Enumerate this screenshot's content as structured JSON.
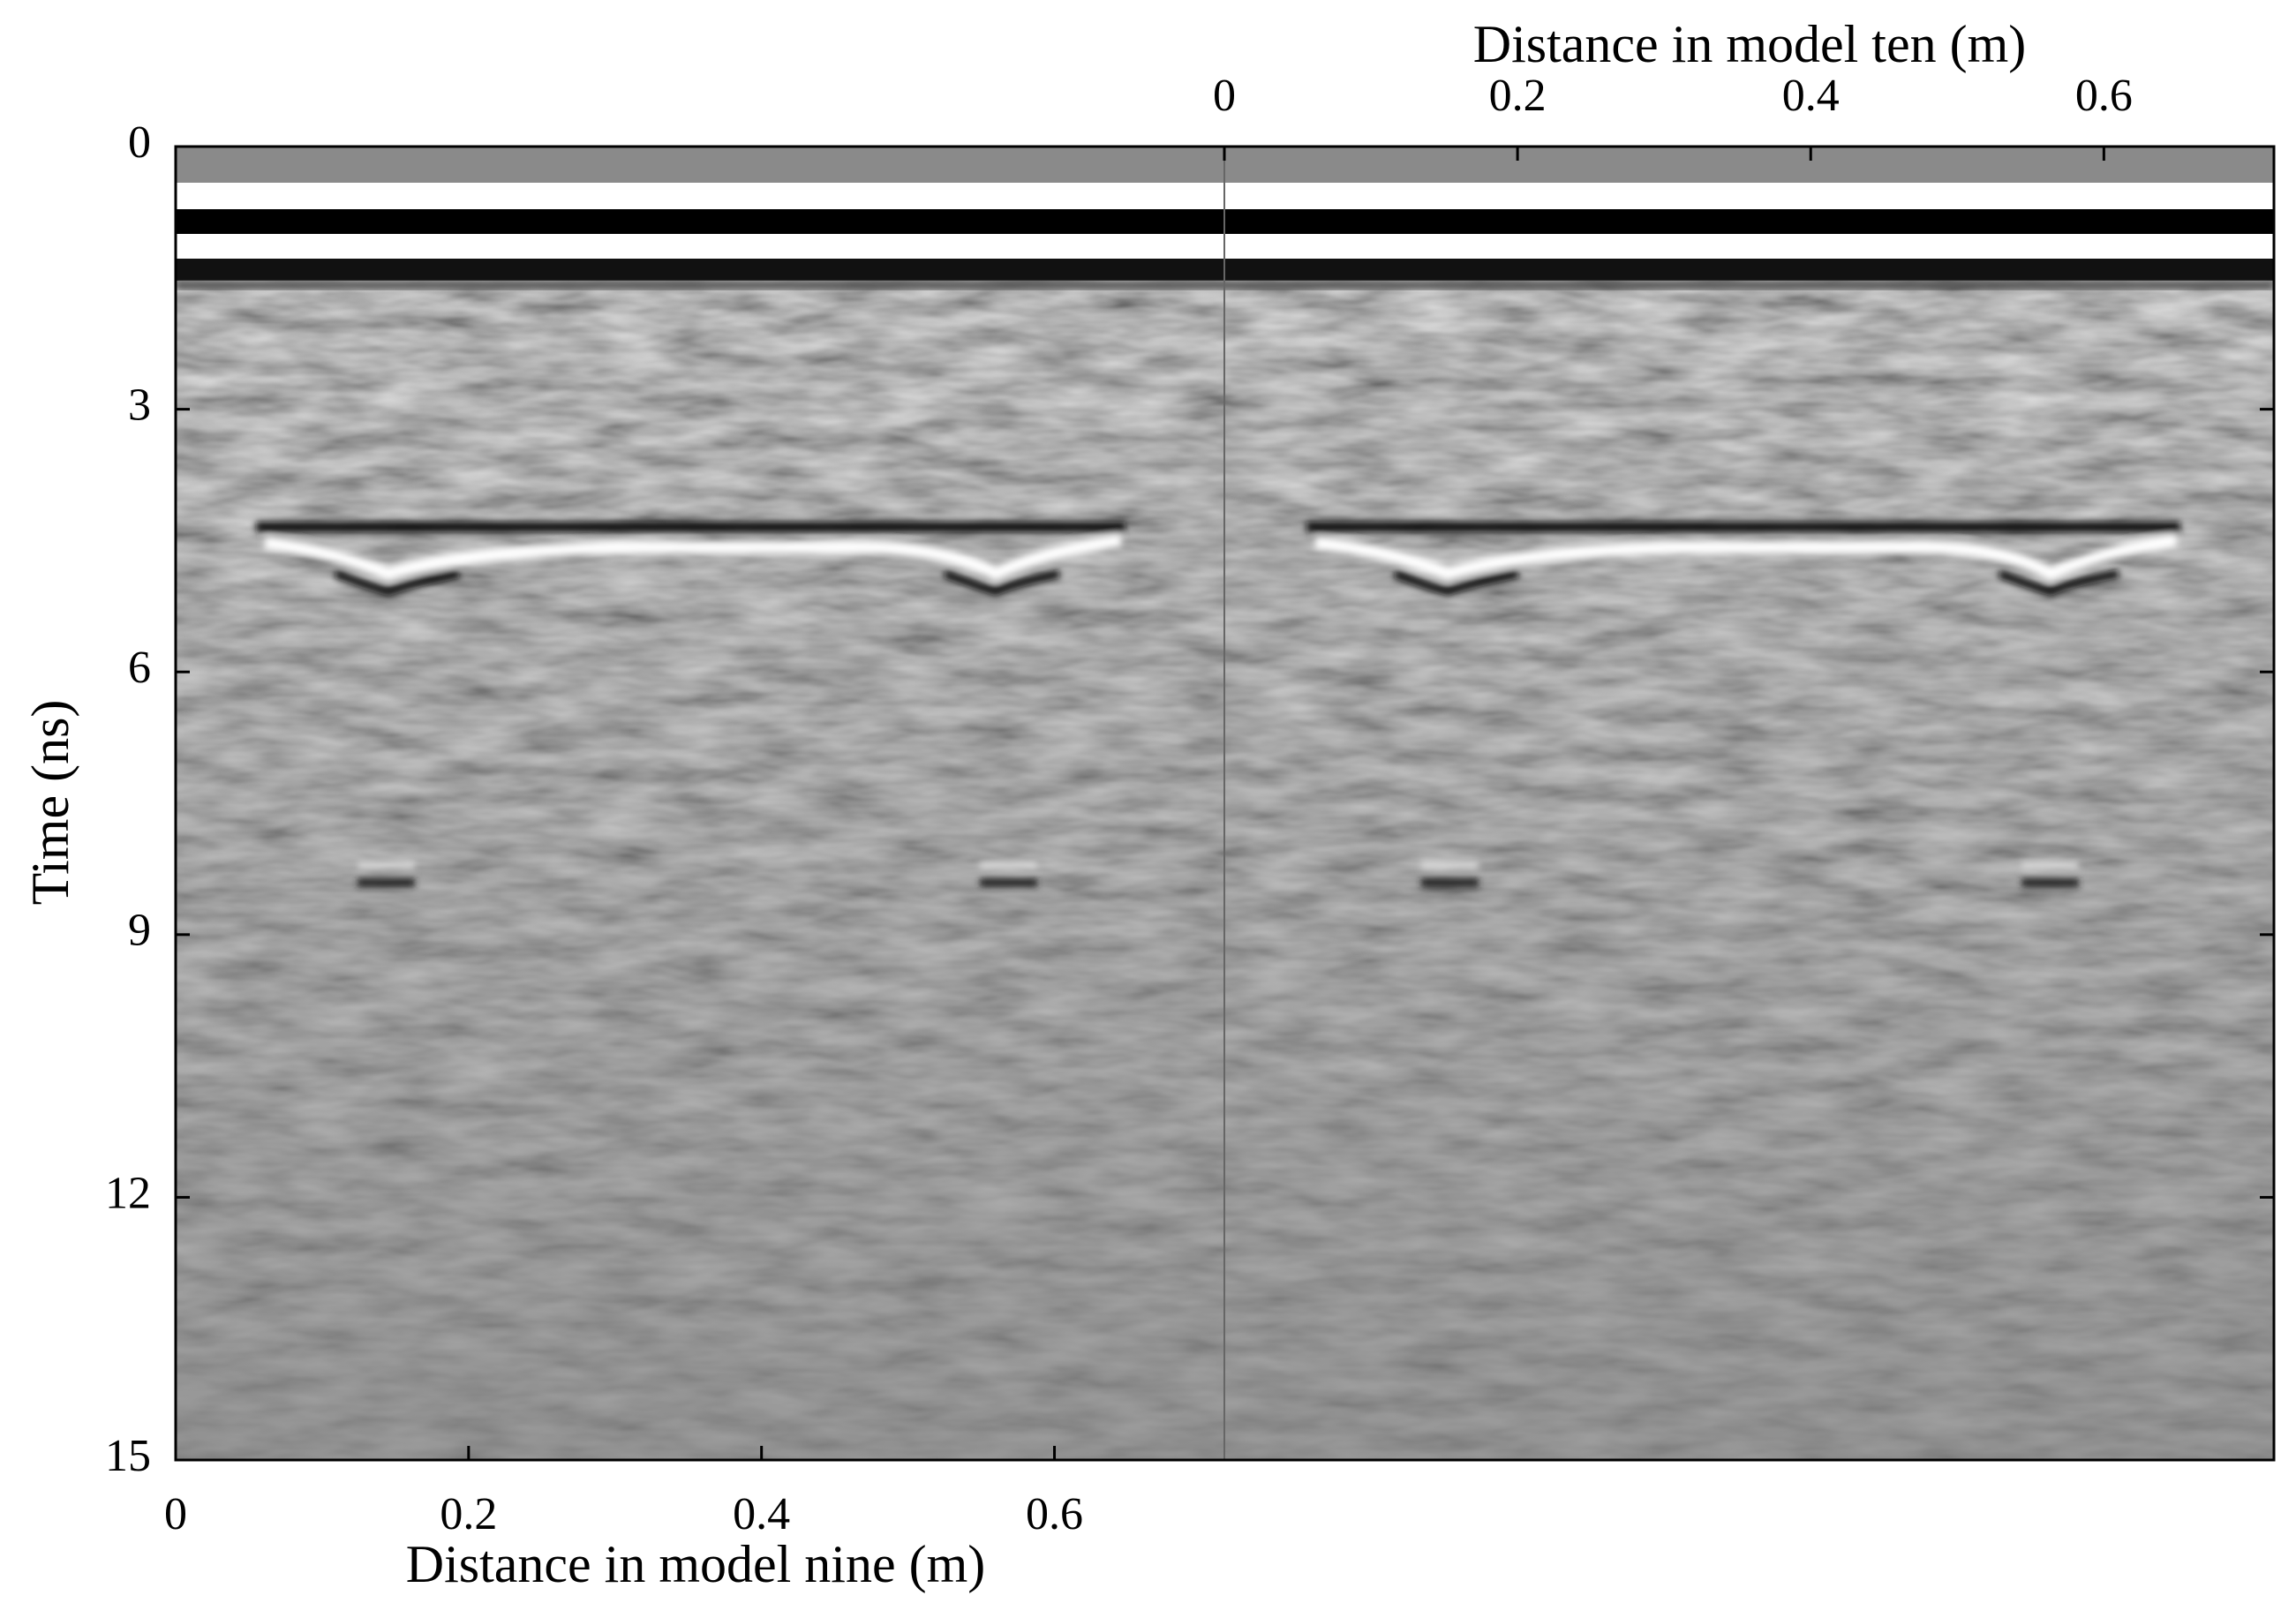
{
  "chart_data": {
    "type": "radargram",
    "ylabel": "Time (ns)",
    "ylim": [
      0,
      15
    ],
    "yticks": [
      0,
      3,
      6,
      9,
      12,
      15
    ],
    "panels": [
      {
        "xlabel": "Distance in model nine (m)",
        "axis_side": "bottom",
        "xlim": [
          0,
          0.716
        ],
        "xticks": [
          0,
          0.2,
          0.4,
          0.6
        ]
      },
      {
        "xlabel": "Distance in model ten (m)",
        "axis_side": "top",
        "xlim": [
          0,
          0.716
        ],
        "xticks": [
          0,
          0.2,
          0.4,
          0.6
        ]
      }
    ],
    "colormap": "gray"
  }
}
